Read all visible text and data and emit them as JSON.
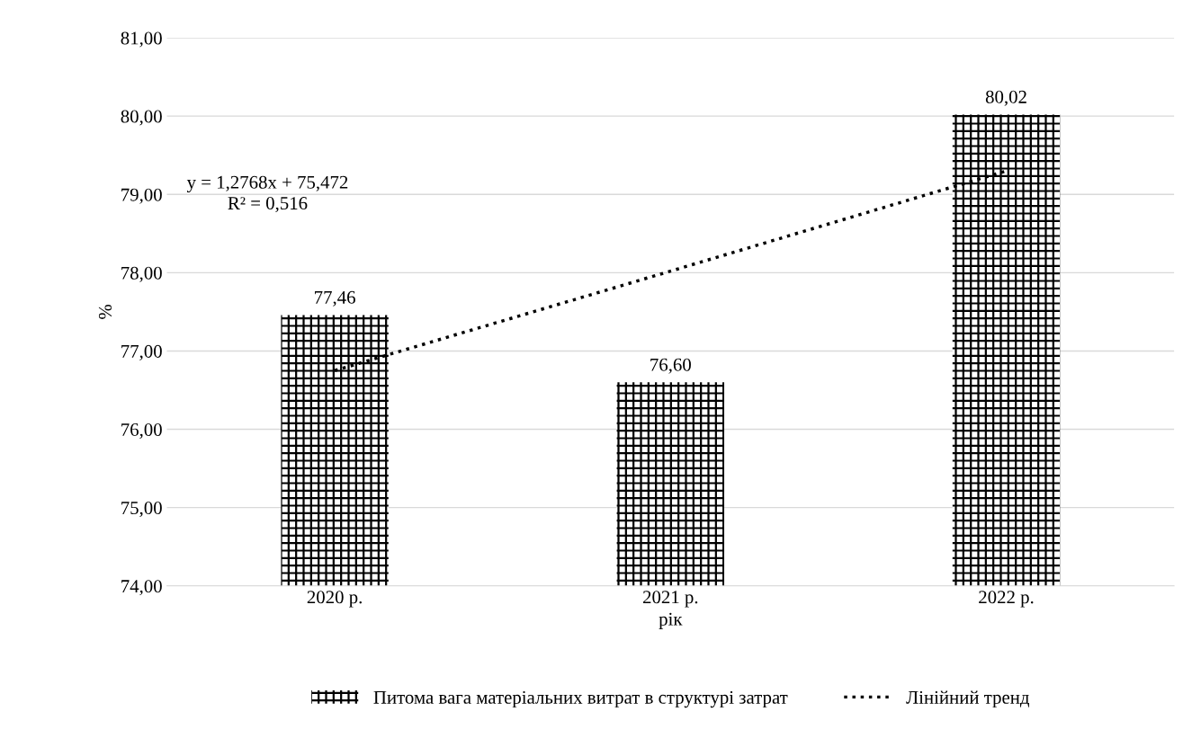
{
  "chart_data": {
    "type": "bar",
    "ylabel": "%",
    "xlabel": "рік",
    "categories": [
      "2020 р.",
      "2021 р.",
      "2022 р."
    ],
    "series": [
      {
        "name": "Питома вага матеріальних витрат в структурі затрат",
        "color": "#ffffff",
        "values": [
          77.46,
          76.6,
          80.02
        ],
        "value_labels": [
          "77,46",
          "76,60",
          "80,02"
        ]
      },
      {
        "name": "Лінійний тренд",
        "type": "line",
        "color": "#000000",
        "line_style": "dotted",
        "values": [
          76.75,
          78.02,
          79.3
        ]
      }
    ],
    "ylim": [
      74,
      81
    ],
    "yticks": [
      {
        "value": 74,
        "label": "74,00"
      },
      {
        "value": 75,
        "label": "75,00"
      },
      {
        "value": 76,
        "label": "76,00"
      },
      {
        "value": 77,
        "label": "77,00"
      },
      {
        "value": 78,
        "label": "78,00"
      },
      {
        "value": 79,
        "label": "79,00"
      },
      {
        "value": 80,
        "label": "80,00"
      },
      {
        "value": 81,
        "label": "81,00"
      }
    ],
    "annotations": [
      "y = 1,2768x + 75,472\nR² = 0,516"
    ],
    "grid": "y",
    "legend": "bottom"
  }
}
